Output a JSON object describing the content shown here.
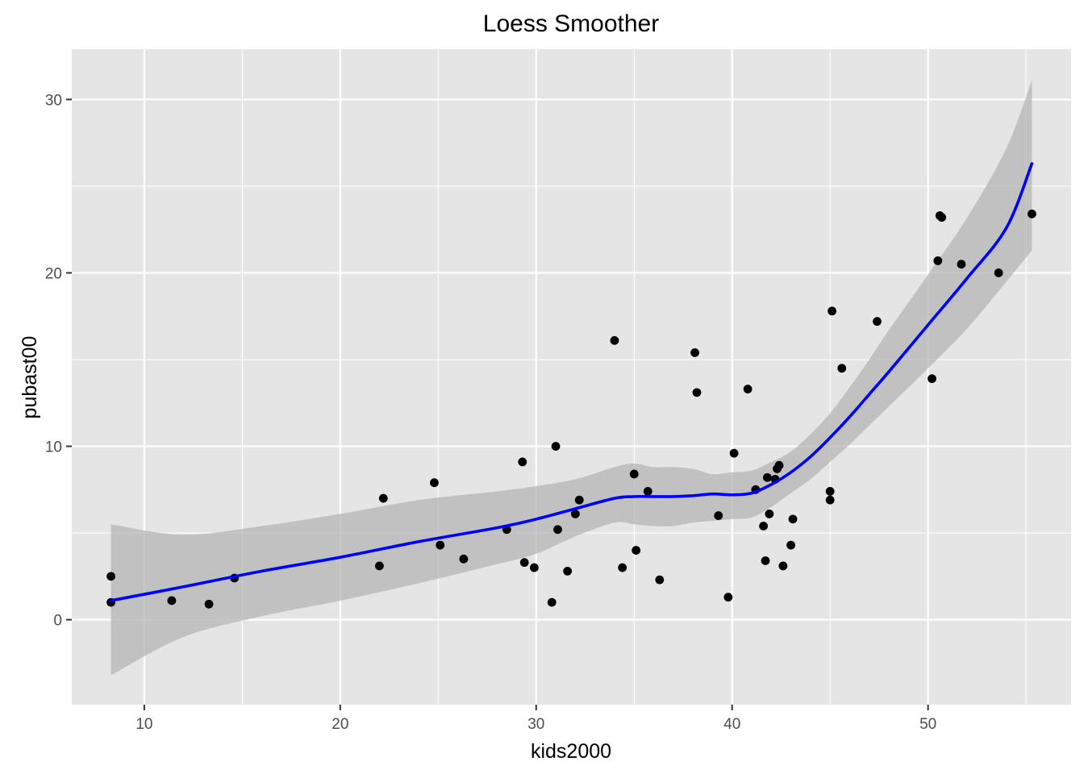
{
  "chart_data": {
    "type": "scatter",
    "title": "Loess Smoother",
    "xlabel": "kids2000",
    "ylabel": "pubast00",
    "xlim": [
      6.3,
      57.3
    ],
    "ylim": [
      -4.9,
      32.9
    ],
    "x_ticks": [
      10,
      20,
      30,
      40,
      50
    ],
    "y_ticks": [
      0,
      10,
      20,
      30
    ],
    "grid": true,
    "colors": {
      "panel": "#e5e5e5",
      "grid": "#ffffff",
      "points": "#000000",
      "smooth_line": "#0000ff",
      "ribbon": "#bdbdbd"
    },
    "points": [
      {
        "x": 8.3,
        "y": 2.5
      },
      {
        "x": 8.3,
        "y": 1.0
      },
      {
        "x": 11.4,
        "y": 1.1
      },
      {
        "x": 13.3,
        "y": 0.9
      },
      {
        "x": 14.6,
        "y": 2.4
      },
      {
        "x": 22.0,
        "y": 3.1
      },
      {
        "x": 22.2,
        "y": 7.0
      },
      {
        "x": 24.8,
        "y": 7.9
      },
      {
        "x": 25.1,
        "y": 4.3
      },
      {
        "x": 26.3,
        "y": 3.5
      },
      {
        "x": 28.5,
        "y": 5.2
      },
      {
        "x": 29.3,
        "y": 9.1
      },
      {
        "x": 29.4,
        "y": 3.3
      },
      {
        "x": 29.9,
        "y": 3.0
      },
      {
        "x": 30.8,
        "y": 1.0
      },
      {
        "x": 31.0,
        "y": 10.0
      },
      {
        "x": 31.1,
        "y": 5.2
      },
      {
        "x": 31.6,
        "y": 2.8
      },
      {
        "x": 32.0,
        "y": 6.1
      },
      {
        "x": 32.2,
        "y": 6.9
      },
      {
        "x": 34.0,
        "y": 16.1
      },
      {
        "x": 34.4,
        "y": 3.0
      },
      {
        "x": 35.0,
        "y": 8.4
      },
      {
        "x": 35.1,
        "y": 4.0
      },
      {
        "x": 35.7,
        "y": 7.4
      },
      {
        "x": 36.3,
        "y": 2.3
      },
      {
        "x": 38.1,
        "y": 15.4
      },
      {
        "x": 38.2,
        "y": 13.1
      },
      {
        "x": 39.3,
        "y": 6.0
      },
      {
        "x": 39.8,
        "y": 1.3
      },
      {
        "x": 40.1,
        "y": 9.6
      },
      {
        "x": 40.8,
        "y": 13.3
      },
      {
        "x": 41.2,
        "y": 7.5
      },
      {
        "x": 41.6,
        "y": 5.4
      },
      {
        "x": 41.7,
        "y": 3.4
      },
      {
        "x": 41.8,
        "y": 8.2
      },
      {
        "x": 41.9,
        "y": 6.1
      },
      {
        "x": 42.2,
        "y": 8.1
      },
      {
        "x": 42.3,
        "y": 8.7
      },
      {
        "x": 42.4,
        "y": 8.9
      },
      {
        "x": 42.6,
        "y": 3.1
      },
      {
        "x": 43.0,
        "y": 4.3
      },
      {
        "x": 43.1,
        "y": 5.8
      },
      {
        "x": 45.0,
        "y": 6.9
      },
      {
        "x": 45.0,
        "y": 7.4
      },
      {
        "x": 45.1,
        "y": 17.8
      },
      {
        "x": 45.6,
        "y": 14.5
      },
      {
        "x": 47.4,
        "y": 17.2
      },
      {
        "x": 50.2,
        "y": 13.9
      },
      {
        "x": 50.5,
        "y": 20.7
      },
      {
        "x": 50.6,
        "y": 23.3
      },
      {
        "x": 50.7,
        "y": 23.2
      },
      {
        "x": 51.7,
        "y": 20.5
      },
      {
        "x": 53.6,
        "y": 20.0
      },
      {
        "x": 55.3,
        "y": 23.4
      }
    ],
    "smooth": {
      "x": [
        8.3,
        12,
        16,
        20,
        24,
        28,
        30,
        32,
        34,
        35,
        36,
        37,
        38,
        39,
        40,
        41,
        42,
        43,
        44,
        45,
        46,
        47,
        48,
        50,
        52,
        54,
        55.3
      ],
      "y": [
        1.1,
        1.9,
        2.8,
        3.6,
        4.5,
        5.3,
        5.8,
        6.4,
        7.0,
        7.1,
        7.1,
        7.1,
        7.15,
        7.25,
        7.2,
        7.3,
        7.8,
        8.5,
        9.4,
        10.5,
        11.7,
        13.0,
        14.3,
        17.0,
        19.7,
        22.6,
        26.3
      ],
      "lower": [
        -3.2,
        -1.0,
        0.2,
        1.1,
        2.1,
        3.2,
        3.8,
        4.8,
        5.6,
        5.5,
        5.4,
        5.4,
        5.6,
        5.7,
        5.8,
        5.9,
        6.5,
        7.3,
        8.1,
        9.1,
        10.1,
        11.2,
        12.3,
        14.5,
        16.8,
        19.5,
        21.3
      ],
      "upper": [
        5.5,
        4.9,
        5.4,
        6.1,
        6.9,
        7.4,
        7.7,
        8.1,
        8.8,
        9.0,
        8.8,
        8.8,
        8.7,
        8.4,
        8.5,
        8.6,
        9.1,
        9.7,
        10.7,
        11.9,
        13.4,
        15.0,
        16.7,
        19.9,
        23.2,
        27.2,
        31.1
      ]
    }
  }
}
